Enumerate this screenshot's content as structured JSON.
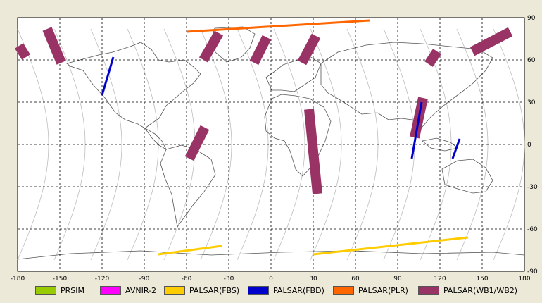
{
  "map": {
    "lon_ticks": [
      "-180",
      "-150",
      "-120",
      "-90",
      "-60",
      "-30",
      "0",
      "30",
      "60",
      "90",
      "120",
      "150",
      "180"
    ],
    "lat_ticks": [
      "90",
      "60",
      "30",
      "0",
      "-30",
      "-60",
      "-90"
    ],
    "lon_range": [
      -180,
      180
    ],
    "lat_range": [
      -90,
      90
    ],
    "grid": "dashed",
    "basemap": "world coastline outline",
    "orbit_tracks": "gray descending/ascending orbit paths"
  },
  "legend": {
    "placement": "bottom",
    "items": [
      {
        "label": "PRSIM",
        "color": "#99cc00"
      },
      {
        "label": "AVNIR-2",
        "color": "#ff00ff"
      },
      {
        "label": "PALSAR(FBS)",
        "color": "#ffcc00"
      },
      {
        "label": "PALSAR(FBD)",
        "color": "#0000cc"
      },
      {
        "label": "PALSAR(PLR)",
        "color": "#ff6600"
      },
      {
        "label": "PALSAR(WB1/WB2)",
        "color": "#993366"
      }
    ]
  },
  "chart_data": {
    "type": "map",
    "swaths": [
      {
        "sensor": "PALSAR(WB1/WB2)",
        "lon": [
          -174,
          -179
        ],
        "lat": [
          62,
          70
        ]
      },
      {
        "sensor": "PALSAR(WB1/WB2)",
        "lon": [
          -149,
          -159
        ],
        "lat": [
          58,
          82
        ]
      },
      {
        "sensor": "PALSAR(WB1/WB2)",
        "lon": [
          -58,
          -47
        ],
        "lat": [
          -10,
          12
        ]
      },
      {
        "sensor": "PALSAR(WB1/WB2)",
        "lon": [
          -48,
          -37
        ],
        "lat": [
          60,
          79
        ]
      },
      {
        "sensor": "PALSAR(WB1/WB2)",
        "lon": [
          -12,
          -3
        ],
        "lat": [
          58,
          76
        ]
      },
      {
        "sensor": "PALSAR(WB1/WB2)",
        "lon": [
          22,
          32
        ],
        "lat": [
          58,
          77
        ]
      },
      {
        "sensor": "PALSAR(WB1/WB2)",
        "lon": [
          33,
          27
        ],
        "lat": [
          -35,
          25
        ]
      },
      {
        "sensor": "PALSAR(WB1/WB2)",
        "lon": [
          102,
          108
        ],
        "lat": [
          5,
          33
        ]
      },
      {
        "sensor": "PALSAR(WB1/WB2)",
        "lon": [
          112,
          118
        ],
        "lat": [
          57,
          66
        ]
      },
      {
        "sensor": "PALSAR(WB1/WB2)",
        "lon": [
          143,
          170
        ],
        "lat": [
          66,
          80
        ]
      },
      {
        "sensor": "PALSAR(FBD)",
        "lon": [
          -120,
          -112
        ],
        "lat": [
          35,
          62
        ]
      },
      {
        "sensor": "PALSAR(FBD)",
        "lon": [
          100,
          107
        ],
        "lat": [
          -10,
          30
        ]
      },
      {
        "sensor": "PALSAR(FBD)",
        "lon": [
          129,
          134
        ],
        "lat": [
          -10,
          4
        ]
      },
      {
        "sensor": "PALSAR(FBS)",
        "lon": [
          -80,
          -35
        ],
        "lat": [
          -78,
          -72
        ]
      },
      {
        "sensor": "PALSAR(FBS)",
        "lon": [
          30,
          140
        ],
        "lat": [
          -78,
          -66
        ]
      },
      {
        "sensor": "PALSAR(PLR)",
        "lon": [
          -60,
          70
        ],
        "lat": [
          80,
          88
        ]
      }
    ]
  }
}
